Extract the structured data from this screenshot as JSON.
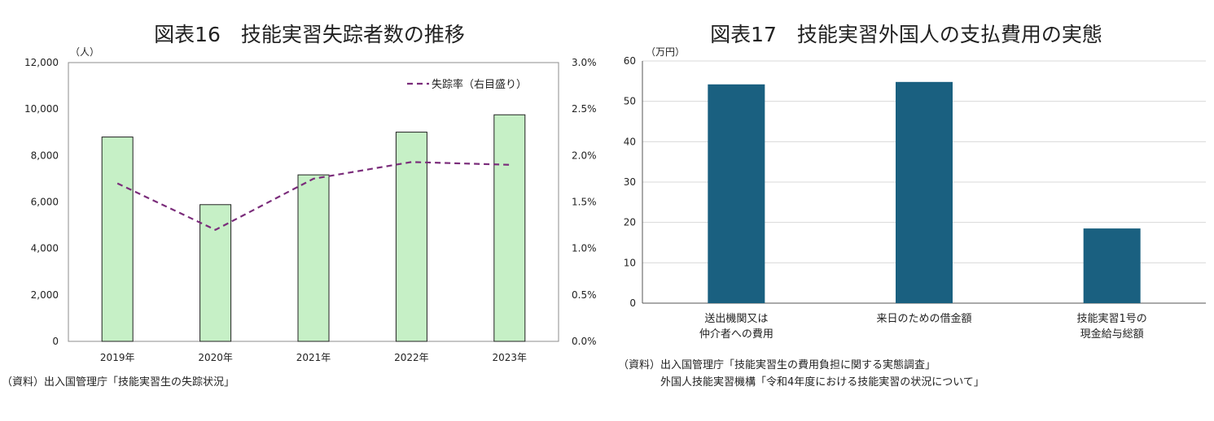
{
  "chart_data": [
    {
      "id": "fig16",
      "type": "bar",
      "title": "図表16　技能実習失踪者数の推移",
      "y_unit": "（人）",
      "categories": [
        "2019年",
        "2020年",
        "2021年",
        "2022年",
        "2023年"
      ],
      "ylim": [
        0,
        12000
      ],
      "yticks": [
        "0",
        "2,000",
        "4,000",
        "6,000",
        "8,000",
        "10,000",
        "12,000"
      ],
      "y2lim": [
        0,
        3.0
      ],
      "y2ticks": [
        "0.0%",
        "0.5%",
        "1.0%",
        "1.5%",
        "2.0%",
        "2.5%",
        "3.0%"
      ],
      "series": [
        {
          "name": "",
          "type": "bar",
          "axis": "left",
          "color": "#c6f0c6",
          "values": [
            8796,
            5885,
            7167,
            9006,
            9753
          ]
        },
        {
          "name": "失踪率（右目盛り）",
          "type": "line",
          "axis": "right",
          "color": "#7b2d7b",
          "dashed": true,
          "values": [
            1.7,
            1.2,
            1.75,
            1.93,
            1.9
          ]
        }
      ],
      "legend_position": "top-right",
      "source": "（資料）出入国管理庁「技能実習生の失踪状況」"
    },
    {
      "id": "fig17",
      "type": "bar",
      "title": "図表17　技能実習外国人の支払費用の実態",
      "y_unit": "（万円）",
      "categories": [
        [
          "送出機関又は",
          "仲介者への費用"
        ],
        [
          "来日のための借金額"
        ],
        [
          "技能実習1号の",
          "現金給与総額"
        ]
      ],
      "ylim": [
        0,
        60
      ],
      "yticks": [
        "0",
        "10",
        "20",
        "30",
        "40",
        "50",
        "60"
      ],
      "grid": true,
      "series": [
        {
          "name": "",
          "color": "#1a6080",
          "values": [
            54.2,
            54.8,
            18.5
          ]
        }
      ],
      "source_lines": [
        "（資料）出入国管理庁「技能実習生の費用負担に関する実態調査」",
        "外国人技能実習機構「令和4年度における技能実習の状況について」"
      ]
    }
  ]
}
